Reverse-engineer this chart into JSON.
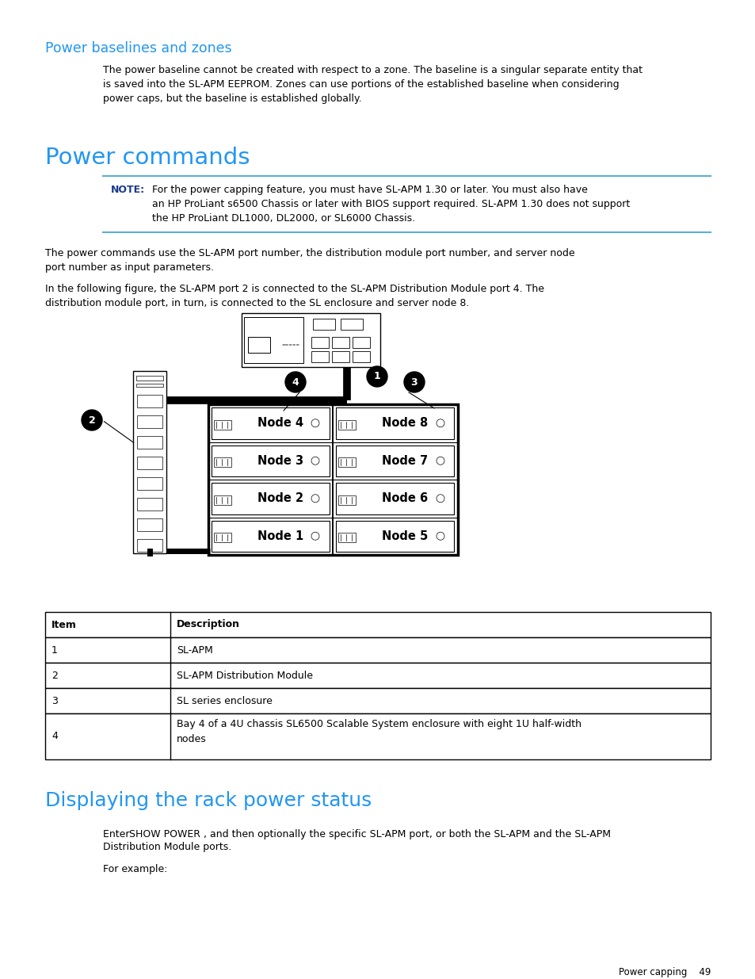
{
  "bg_color": "#ffffff",
  "section1_title": "Power baselines and zones",
  "section1_title_color": "#2196f3",
  "section1_title_size": 12.5,
  "section1_body": "The power baseline cannot be created with respect to a zone. The baseline is a singular separate entity that\nis saved into the SL-APM EEPROM. Zones can use portions of the established baseline when considering\npower caps, but the baseline is established globally.",
  "section1_body_size": 9.0,
  "section2_title": "Power commands",
  "section2_title_color": "#2196f3",
  "section2_title_size": 21,
  "note_label_color": "#1a3a8a",
  "note_line_color": "#5bafd6",
  "para1": "The power commands use the SL-APM port number, the distribution module port number, and server node\nport number as input parameters.",
  "para2": "In the following figure, the SL-APM port 2 is connected to the SL-APM Distribution Module port 4. The\ndistribution module port, in turn, is connected to the SL enclosure and server node 8.",
  "para_size": 9.0,
  "section3_title": "Displaying the rack power status",
  "section3_title_color": "#2196f3",
  "section3_title_size": 18,
  "para4": "For example:",
  "para3_size": 9.0,
  "footer_text": "Power capping    49",
  "footer_size": 8.5,
  "table_headers": [
    "Item",
    "Description"
  ],
  "table_rows": [
    [
      "1",
      "SL-APM"
    ],
    [
      "2",
      "SL-APM Distribution Module"
    ],
    [
      "3",
      "SL series enclosure"
    ],
    [
      "4",
      "Bay 4 of a 4U chassis SL6500 Scalable System enclosure with eight 1U half-width\nnodes"
    ]
  ]
}
